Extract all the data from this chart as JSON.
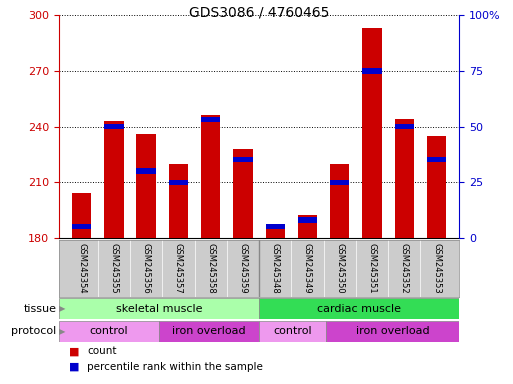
{
  "title": "GDS3086 / 4760465",
  "samples": [
    "GSM245354",
    "GSM245355",
    "GSM245356",
    "GSM245357",
    "GSM245358",
    "GSM245359",
    "GSM245348",
    "GSM245349",
    "GSM245350",
    "GSM245351",
    "GSM245352",
    "GSM245353"
  ],
  "count_values": [
    204,
    243,
    236,
    220,
    246,
    228,
    186,
    192,
    220,
    293,
    244,
    235
  ],
  "percentile_values": [
    5,
    50,
    30,
    25,
    53,
    35,
    5,
    8,
    25,
    75,
    50,
    35
  ],
  "ymin": 180,
  "ymax": 300,
  "yticks": [
    180,
    210,
    240,
    270,
    300
  ],
  "y2min": 0,
  "y2max": 100,
  "y2ticks": [
    0,
    25,
    50,
    75,
    100
  ],
  "tissue_groups": [
    {
      "label": "skeletal muscle",
      "start": 0,
      "end": 6,
      "color": "#aaffaa"
    },
    {
      "label": "cardiac muscle",
      "start": 6,
      "end": 12,
      "color": "#33dd55"
    }
  ],
  "protocol_groups": [
    {
      "label": "control",
      "start": 0,
      "end": 3,
      "color": "#ee99ee"
    },
    {
      "label": "iron overload",
      "start": 3,
      "end": 6,
      "color": "#cc44cc"
    },
    {
      "label": "control",
      "start": 6,
      "end": 8,
      "color": "#ee99ee"
    },
    {
      "label": "iron overload",
      "start": 8,
      "end": 12,
      "color": "#cc44cc"
    }
  ],
  "bar_color": "#cc0000",
  "percentile_color": "#0000cc",
  "bar_width": 0.6,
  "background_color": "#ffffff",
  "plot_bg_color": "#ffffff",
  "left_axis_color": "#cc0000",
  "right_axis_color": "#0000cc",
  "grid_color": "#000000",
  "legend_count_label": "count",
  "legend_percentile_label": "percentile rank within the sample",
  "tissue_label": "tissue",
  "protocol_label": "protocol",
  "label_bg_color": "#cccccc"
}
